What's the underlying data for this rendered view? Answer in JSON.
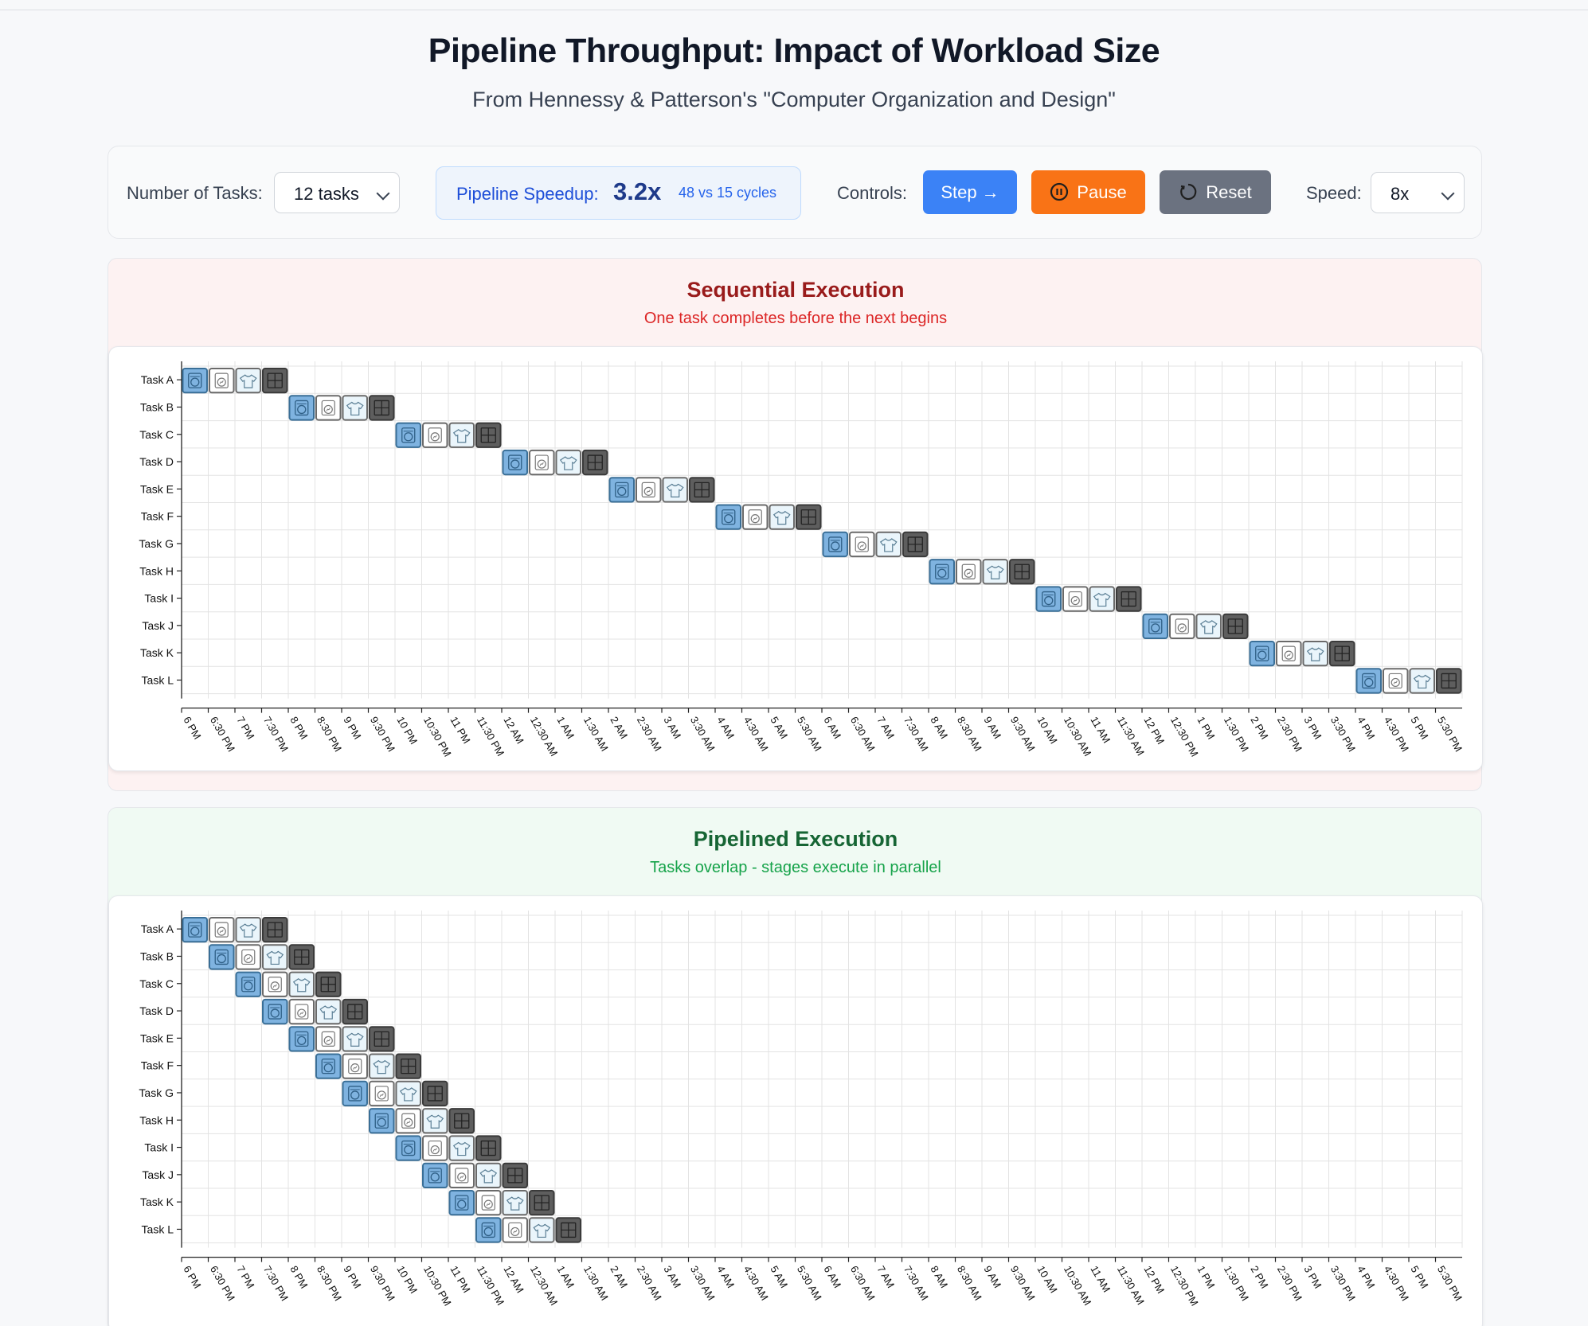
{
  "page": {
    "title": "Pipeline Throughput: Impact of Workload Size",
    "subtitle": "From Hennessy & Patterson's \"Computer Organization and Design\""
  },
  "controls": {
    "tasks_label": "Number of Tasks:",
    "tasks_value": "12 tasks",
    "speedup_label": "Pipeline Speedup:",
    "speedup_value": "3.2x",
    "speedup_detail": "48 vs 15 cycles",
    "controls_label": "Controls:",
    "step_label": "Step →",
    "pause_label": "Pause",
    "reset_label": "Reset",
    "speed_label": "Speed:",
    "speed_value": "8x"
  },
  "sequential": {
    "title": "Sequential Execution",
    "subtitle": "One task completes before the next begins"
  },
  "pipelined": {
    "title": "Pipelined Execution",
    "subtitle": "Tasks overlap - stages execute in parallel"
  },
  "colors": {
    "wash": "#7fb3e0",
    "dry": "#ffffff",
    "fold": "#eaf5fb",
    "store": "#5e5e5e"
  },
  "chart_data": [
    {
      "type": "gantt",
      "name": "sequential",
      "tasks": [
        "Task A",
        "Task B",
        "Task C",
        "Task D",
        "Task E",
        "Task F",
        "Task G",
        "Task H",
        "Task I",
        "Task J",
        "Task K",
        "Task L"
      ],
      "stages": [
        "wash",
        "dry",
        "fold",
        "store"
      ],
      "stage_icons": [
        "washer-icon",
        "dryer-icon",
        "shirt-icon",
        "cabinet-icon"
      ],
      "start_slots": [
        0,
        4,
        8,
        12,
        16,
        20,
        24,
        28,
        32,
        36,
        40,
        44
      ],
      "x_ticks": [
        "6 PM",
        "6:30 PM",
        "7 PM",
        "7:30 PM",
        "8 PM",
        "8:30 PM",
        "9 PM",
        "9:30 PM",
        "10 PM",
        "10:30 PM",
        "11 PM",
        "11:30 PM",
        "12 AM",
        "12:30 AM",
        "1 AM",
        "1:30 AM",
        "2 AM",
        "2:30 AM",
        "3 AM",
        "3:30 AM",
        "4 AM",
        "4:30 AM",
        "5 AM",
        "5:30 AM",
        "6 AM",
        "6:30 AM",
        "7 AM",
        "7:30 AM",
        "8 AM",
        "8:30 AM",
        "9 AM",
        "9:30 AM",
        "10 AM",
        "10:30 AM",
        "11 AM",
        "11:30 AM",
        "12 PM",
        "12:30 PM",
        "1 PM",
        "1:30 PM",
        "2 PM",
        "2:30 PM",
        "3 PM",
        "3:30 PM",
        "4 PM",
        "4:30 PM",
        "5 PM",
        "5:30 PM"
      ],
      "total_cycles": 48
    },
    {
      "type": "gantt",
      "name": "pipelined",
      "tasks": [
        "Task A",
        "Task B",
        "Task C",
        "Task D",
        "Task E",
        "Task F",
        "Task G",
        "Task H",
        "Task I",
        "Task J",
        "Task K",
        "Task L"
      ],
      "stages": [
        "wash",
        "dry",
        "fold",
        "store"
      ],
      "stage_icons": [
        "washer-icon",
        "dryer-icon",
        "shirt-icon",
        "cabinet-icon"
      ],
      "start_slots": [
        0,
        1,
        2,
        3,
        4,
        5,
        6,
        7,
        8,
        9,
        10,
        11
      ],
      "x_ticks": [
        "6 PM",
        "6:30 PM",
        "7 PM",
        "7:30 PM",
        "8 PM",
        "8:30 PM",
        "9 PM",
        "9:30 PM",
        "10 PM",
        "10:30 PM",
        "11 PM",
        "11:30 PM",
        "12 AM",
        "12:30 AM",
        "1 AM",
        "1:30 AM",
        "2 AM",
        "2:30 AM",
        "3 AM",
        "3:30 AM",
        "4 AM",
        "4:30 AM",
        "5 AM",
        "5:30 AM",
        "6 AM",
        "6:30 AM",
        "7 AM",
        "7:30 AM",
        "8 AM",
        "8:30 AM",
        "9 AM",
        "9:30 AM",
        "10 AM",
        "10:30 AM",
        "11 AM",
        "11:30 AM",
        "12 PM",
        "12:30 PM",
        "1 PM",
        "1:30 PM",
        "2 PM",
        "2:30 PM",
        "3 PM",
        "3:30 PM",
        "4 PM",
        "4:30 PM",
        "5 PM",
        "5:30 PM"
      ],
      "total_cycles": 15
    }
  ]
}
